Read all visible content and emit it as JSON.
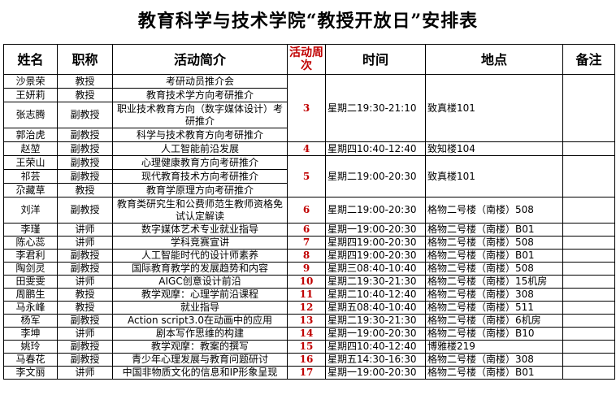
{
  "title": "教育科学与技术学院“教授开放日”安排表",
  "headers": {
    "name": "姓名",
    "rank": "职称",
    "activity": "活动简介",
    "week": "活动周次",
    "time": "时间",
    "place": "地点",
    "remark": "备注"
  },
  "rows": [
    {
      "name": "沙景荣",
      "rank": "教授",
      "activity": "考研动员推介会",
      "week": "3",
      "time": "星期二19:30-21:10",
      "place": "致真楼101",
      "remark": ""
    },
    {
      "name": "王妍莉",
      "rank": "教授",
      "activity": "教育技术学方向考研推介"
    },
    {
      "name": "张志腾",
      "rank": "副教授",
      "activity": "职业技术教育方向（数字媒体设计）考研推介"
    },
    {
      "name": "郭治虎",
      "rank": "副教授",
      "activity": "科学与技术教育方向考研推介"
    },
    {
      "name": "赵堃",
      "rank": "副教授",
      "activity": "人工智能前沿发展",
      "week": "4",
      "time": "星期四10:40-12:40",
      "place": "致知楼104",
      "remark": ""
    },
    {
      "name": "王荣山",
      "rank": "副教授",
      "activity": "心理健康教育方向考研推介",
      "week": "5",
      "time": "星期二19:00-20:30",
      "place": "致真楼101",
      "remark": ""
    },
    {
      "name": "祁芸",
      "rank": "副教授",
      "activity": "现代教育技术方向考研推介"
    },
    {
      "name": "尕藏草",
      "rank": "教授",
      "activity": "教育学原理方向考研推介"
    },
    {
      "name": "刘洋",
      "rank": "副教授",
      "activity": "教育类研究生和公费师范生教师资格免试认定解读",
      "week": "6",
      "time": "星期二19:00-20:30",
      "place": "格物二号楼（南楼）508",
      "remark": ""
    },
    {
      "name": "李瑾",
      "rank": "讲师",
      "activity": "数字媒体艺术专业就业指导",
      "week": "6",
      "time": "星期一19:00-20:30",
      "place": "格物二号楼（南楼）B01",
      "remark": ""
    },
    {
      "name": "陈心蕊",
      "rank": "讲师",
      "activity": "学科竞赛宣讲",
      "week": "7",
      "time": "星期四19:00-20:30",
      "place": "格物二号楼（南楼）508",
      "remark": ""
    },
    {
      "name": "李君利",
      "rank": "副教授",
      "activity": "人工智能时代的设计师素养",
      "week": "8",
      "time": "星期四19:00-20:30",
      "place": "格物二号楼（南楼）B01",
      "remark": ""
    },
    {
      "name": "陶剑灵",
      "rank": "副教授",
      "activity": "国际教育教学的发展趋势和内容",
      "week": "9",
      "time": "星期三08:40-10:40",
      "place": "格物二号楼（南楼）508",
      "remark": ""
    },
    {
      "name": "田雯雯",
      "rank": "讲师",
      "activity": "AIGC创意设计前沿",
      "week": "10",
      "time": "星期二19:30-21:30",
      "place": "格物二号楼（南楼）15机房",
      "remark": ""
    },
    {
      "name": "周鹏生",
      "rank": "教授",
      "activity": "教学观摩：心理学前沿课程",
      "week": "11",
      "time": "星期二10:40-12:40",
      "place": "格物二号楼（南楼）308",
      "remark": ""
    },
    {
      "name": "马永峰",
      "rank": "教授",
      "activity": "就业指导",
      "week": "12",
      "time": "星期五08:40-10:40",
      "place": "格物二号楼（南楼）511",
      "remark": ""
    },
    {
      "name": "杨军",
      "rank": "副教授",
      "activity": "Action script3.0在动画中的应用",
      "week": "13",
      "time": "星期二19:30-21:30",
      "place": "格物二号楼（南楼）6机房",
      "remark": ""
    },
    {
      "name": "李坤",
      "rank": "讲师",
      "activity": "剧本写作思维的构建",
      "week": "14",
      "time": "星期一19:00-20:30",
      "place": "格物二号楼（南楼）B10",
      "remark": ""
    },
    {
      "name": "姚玲",
      "rank": "副教授",
      "activity": "教学观摩：教案的撰写",
      "week": "15",
      "time": "星期四10:40-12:40",
      "place": "博雅楼219",
      "remark": ""
    },
    {
      "name": "马春花",
      "rank": "副教授",
      "activity": "青少年心理发展与教育问题研讨",
      "week": "16",
      "time": "星期五14:30-16:30",
      "place": "格物二号楼（南楼）308",
      "remark": ""
    },
    {
      "name": "李文丽",
      "rank": "讲师",
      "activity": "中国非物质文化的信息和IP形象呈现",
      "week": "17",
      "time": "星期一19:00-20:30",
      "place": "格物二号楼（南楼）B01",
      "remark": ""
    }
  ],
  "colors": {
    "week_text": "#c00000",
    "border": "#000000"
  }
}
